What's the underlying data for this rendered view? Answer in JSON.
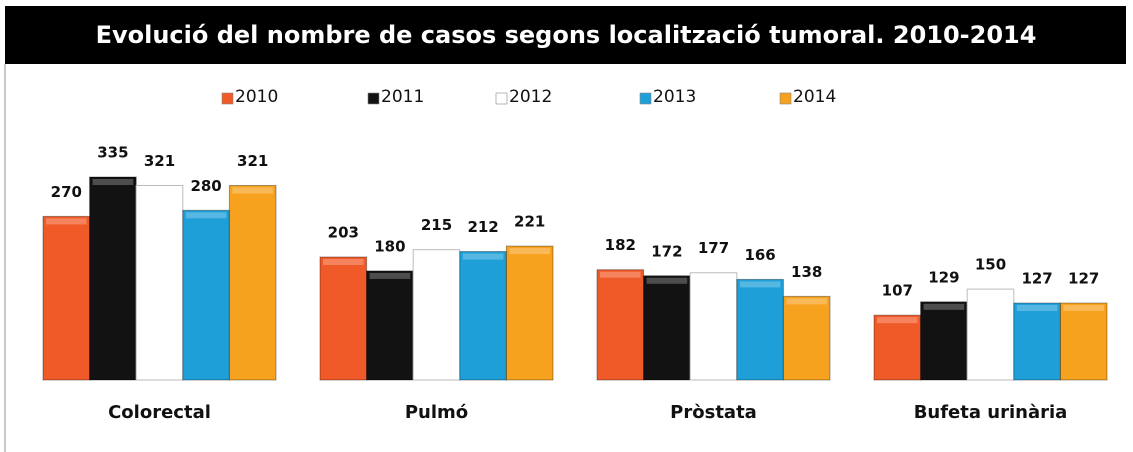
{
  "chart_data": {
    "type": "bar",
    "title": "Evolució del nombre de casos segons localització tumoral. 2010-2014",
    "categories": [
      "Colorectal",
      "Pulmó",
      "Pròstata",
      "Bufeta urinària"
    ],
    "series": [
      {
        "name": "2010",
        "color": "#f05a28",
        "values": [
          270,
          203,
          182,
          107
        ]
      },
      {
        "name": "2011",
        "color": "#121212",
        "values": [
          335,
          180,
          172,
          129
        ]
      },
      {
        "name": "2012",
        "color": "#ffffff",
        "values": [
          321,
          215,
          177,
          150
        ]
      },
      {
        "name": "2013",
        "color": "#1e9fd8",
        "values": [
          280,
          212,
          166,
          127
        ]
      },
      {
        "name": "2014",
        "color": "#f7a21e",
        "values": [
          321,
          221,
          138,
          127
        ]
      }
    ]
  }
}
